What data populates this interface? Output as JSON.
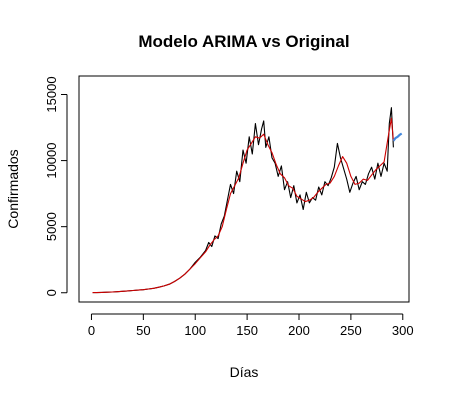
{
  "chart_data": {
    "type": "line",
    "title": "Modelo ARIMA vs Original",
    "xlabel": "Días",
    "ylabel": "Confirmados",
    "xlim": [
      -12,
      306
    ],
    "ylim": [
      -700,
      16400
    ],
    "x_ticks": [
      0,
      50,
      100,
      150,
      200,
      250,
      300
    ],
    "y_ticks": [
      0,
      5000,
      10000,
      15000
    ],
    "x_tick_labels": [
      "0",
      "50",
      "100",
      "150",
      "200",
      "250",
      "300"
    ],
    "y_tick_labels": [
      "0",
      "5000",
      "10000",
      "15000"
    ],
    "grid": false,
    "legend": "none",
    "series": [
      {
        "role": "original",
        "color": "#000000",
        "x": [
          1,
          5,
          10,
          15,
          20,
          25,
          30,
          35,
          40,
          45,
          50,
          55,
          60,
          65,
          70,
          75,
          80,
          85,
          90,
          95,
          100,
          105,
          110,
          113,
          116,
          119,
          122,
          125,
          128,
          131,
          134,
          137,
          140,
          143,
          146,
          149,
          152,
          155,
          158,
          161,
          164,
          166,
          168,
          171,
          174,
          177,
          180,
          183,
          186,
          189,
          192,
          195,
          198,
          201,
          204,
          207,
          210,
          213,
          216,
          219,
          222,
          225,
          228,
          231,
          234,
          237,
          240,
          243,
          246,
          249,
          252,
          255,
          258,
          261,
          264,
          267,
          270,
          273,
          276,
          279,
          282,
          285,
          287,
          289,
          291
        ],
        "y": [
          10,
          15,
          25,
          40,
          60,
          80,
          110,
          140,
          170,
          200,
          230,
          280,
          340,
          420,
          520,
          650,
          850,
          1100,
          1400,
          1800,
          2300,
          2700,
          3200,
          3800,
          3500,
          4300,
          4100,
          5200,
          5800,
          7000,
          8200,
          7500,
          9200,
          8400,
          10800,
          9800,
          11800,
          10500,
          12800,
          11200,
          12400,
          13000,
          11000,
          11800,
          10200,
          9800,
          8800,
          9600,
          7800,
          8400,
          7200,
          8100,
          6800,
          7400,
          6300,
          7600,
          6800,
          7200,
          7000,
          8000,
          7400,
          8400,
          8100,
          8700,
          9500,
          11300,
          10200,
          9400,
          8600,
          7600,
          8300,
          8800,
          7800,
          8400,
          8200,
          9000,
          9500,
          8600,
          9800,
          8800,
          9800,
          9200,
          12800,
          14000,
          11000
        ]
      },
      {
        "role": "arima_fit",
        "color": "#cc0000",
        "x": [
          1,
          5,
          10,
          15,
          20,
          25,
          30,
          35,
          40,
          45,
          50,
          55,
          60,
          65,
          70,
          75,
          80,
          85,
          90,
          95,
          100,
          105,
          110,
          114,
          118,
          122,
          126,
          130,
          134,
          138,
          142,
          146,
          150,
          154,
          158,
          162,
          166,
          170,
          174,
          178,
          182,
          186,
          190,
          194,
          198,
          202,
          206,
          210,
          214,
          218,
          222,
          226,
          230,
          234,
          238,
          242,
          246,
          250,
          254,
          258,
          262,
          266,
          270,
          274,
          278,
          282,
          286,
          289,
          291
        ],
        "y": [
          10,
          15,
          25,
          40,
          60,
          80,
          110,
          140,
          170,
          200,
          230,
          280,
          340,
          420,
          520,
          650,
          850,
          1100,
          1400,
          1800,
          2200,
          2650,
          3100,
          3600,
          4000,
          4300,
          5000,
          6300,
          7500,
          8100,
          8700,
          9800,
          10800,
          11300,
          11800,
          11700,
          12000,
          11200,
          10600,
          9700,
          9000,
          8700,
          8100,
          7900,
          7300,
          7100,
          6900,
          7000,
          7200,
          7600,
          7900,
          8200,
          8300,
          8800,
          9600,
          10300,
          9800,
          8800,
          8200,
          8300,
          8600,
          8500,
          8900,
          9300,
          9600,
          9900,
          11800,
          13200,
          11500
        ]
      },
      {
        "role": "forecast",
        "color": "#4488dd",
        "x": [
          291,
          293,
          295,
          297,
          299
        ],
        "y": [
          11500,
          11700,
          11800,
          11950,
          12050
        ]
      }
    ]
  }
}
